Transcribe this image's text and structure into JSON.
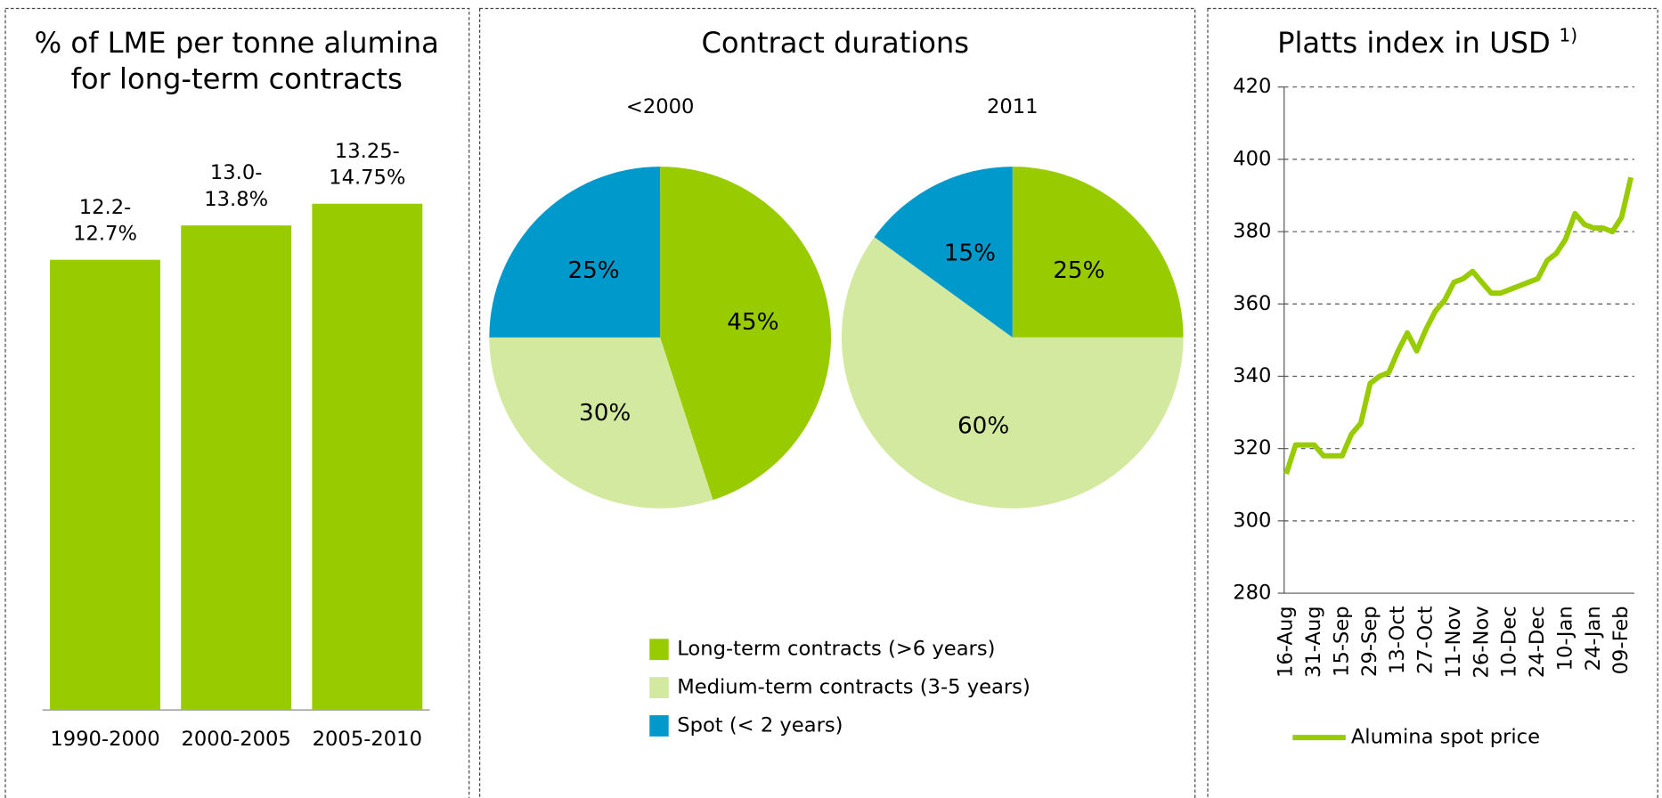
{
  "chart_data": [
    {
      "type": "bar",
      "title": [
        "% of LME per tonne alumina",
        "for long-term contracts"
      ],
      "categories": [
        "1990-2000",
        "2000-2005",
        "2005-2010"
      ],
      "values": [
        12.45,
        13.4,
        14.0
      ],
      "value_labels": [
        [
          "12.2-",
          "12.7%"
        ],
        [
          "13.0-",
          "13.8%"
        ],
        [
          "13.25-",
          "14.75%"
        ]
      ],
      "color": "#99cc00"
    },
    {
      "type": "pie",
      "title": "Contract durations",
      "categories": [
        "Long-term contracts (>6 years)",
        "Medium-term contracts (3-5 years)",
        "Spot (< 2 years)"
      ],
      "colors": [
        "#99cc00",
        "#d4e9a0",
        "#0099cc"
      ],
      "series": [
        {
          "name": "<2000",
          "values": [
            45,
            30,
            25
          ],
          "value_labels": [
            "45%",
            "30%",
            "25%"
          ]
        },
        {
          "name": "2011",
          "values": [
            25,
            60,
            15
          ],
          "value_labels": [
            "25%",
            "60%",
            "15%"
          ]
        }
      ]
    },
    {
      "type": "line",
      "title": "Platts index in USD",
      "title_note": "1)",
      "categories": [
        "16-Aug",
        null,
        null,
        "31-Aug",
        null,
        null,
        "15-Sep",
        null,
        null,
        "29-Sep",
        null,
        null,
        "13-Oct",
        null,
        null,
        "27-Oct",
        null,
        null,
        "11-Nov",
        null,
        null,
        "26-Nov",
        null,
        null,
        "10-Dec",
        null,
        null,
        "24-Dec",
        null,
        null,
        "10-Jan",
        null,
        null,
        "24-Jan",
        null,
        null,
        "09-Feb",
        null
      ],
      "series": [
        {
          "name": "Alumina spot price",
          "color": "#99cc00",
          "values": [
            313,
            321,
            321,
            321,
            318,
            318,
            318,
            324,
            327,
            338,
            340,
            341,
            347,
            352,
            347,
            353,
            358,
            361,
            366,
            367,
            369,
            366,
            363,
            363,
            364,
            365,
            366,
            367,
            372,
            374,
            378,
            385,
            382,
            381,
            381,
            380,
            384,
            395
          ]
        }
      ],
      "ylim": [
        280,
        420
      ],
      "yticks": [
        280,
        300,
        320,
        340,
        360,
        380,
        400,
        420
      ],
      "grid": true
    }
  ]
}
